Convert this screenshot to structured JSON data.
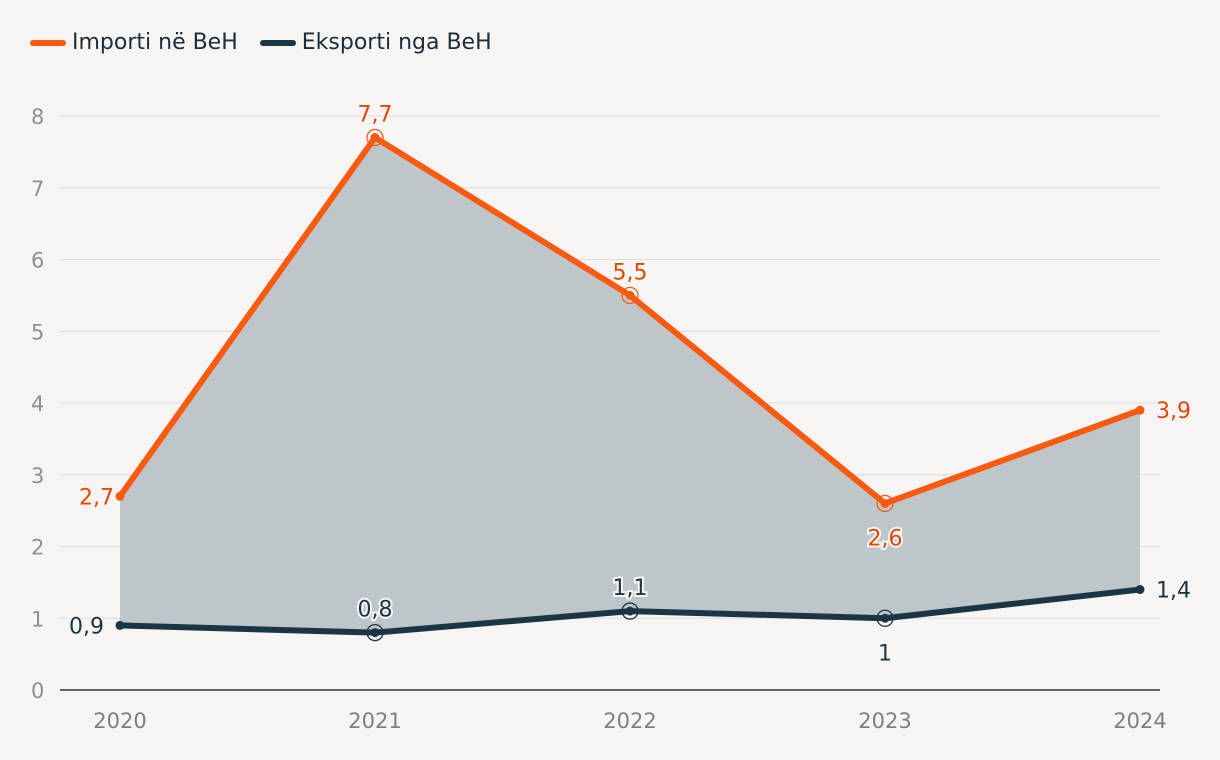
{
  "chart_data": {
    "type": "line",
    "categories": [
      "2020",
      "2021",
      "2022",
      "2023",
      "2024"
    ],
    "series": [
      {
        "name": "Importi në BeH",
        "values": [
          2.7,
          7.7,
          5.5,
          2.6,
          3.9
        ],
        "labels": [
          "2,7",
          "7,7",
          "5,5",
          "2,6",
          "3,9"
        ],
        "color": "#fa5a0f"
      },
      {
        "name": "Eksporti nga BeH",
        "values": [
          0.9,
          0.8,
          1.1,
          1.0,
          1.4
        ],
        "labels": [
          "0,9",
          "0,8",
          "1,1",
          "1",
          "1,4"
        ],
        "color": "#1b3544"
      }
    ],
    "yticks": [
      "0",
      "1",
      "2",
      "3",
      "4",
      "5",
      "6",
      "7",
      "8"
    ],
    "ylim": [
      0,
      8
    ],
    "grid": true,
    "legend": "top-left",
    "area_between_series": true,
    "area_color": "#bfc6c9",
    "label_color_import": "#e0480a"
  }
}
